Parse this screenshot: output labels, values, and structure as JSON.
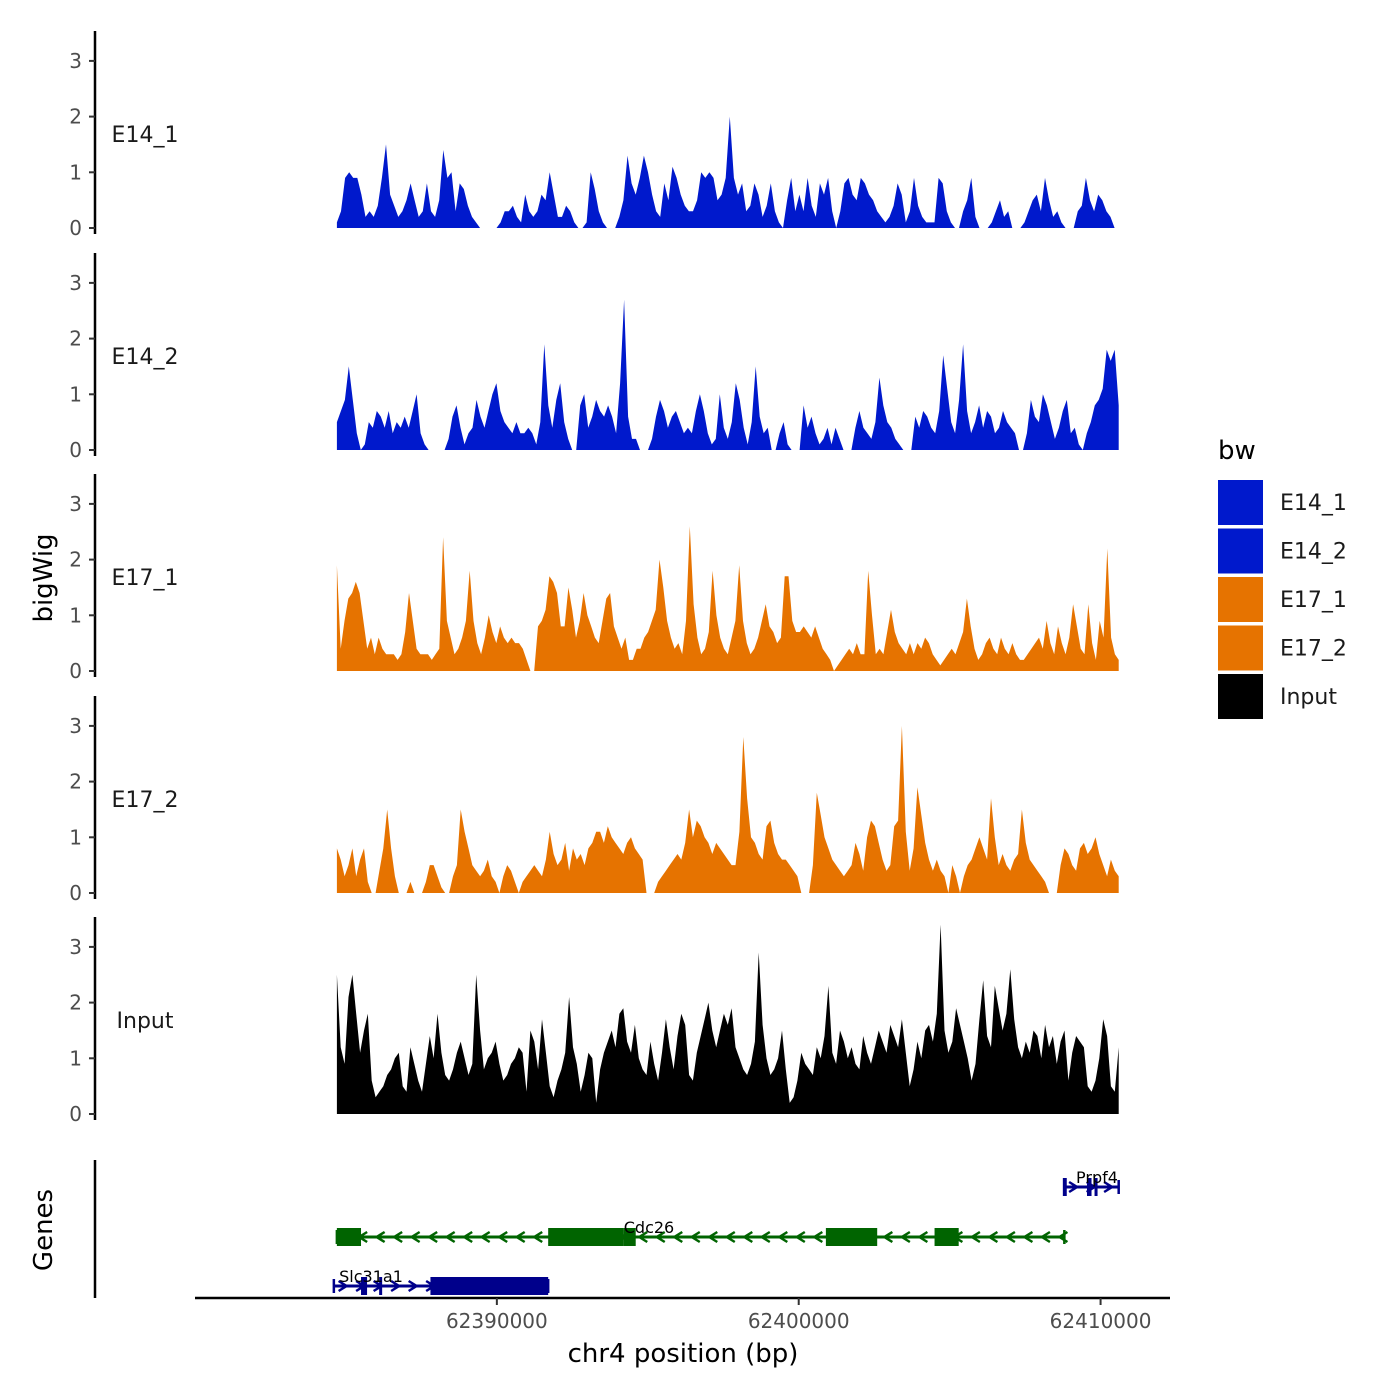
{
  "chart_data": {
    "type": "area",
    "title": "",
    "xlabel": "chr4 position (bp)",
    "ylabel": "bigWig",
    "genes_label": "Genes",
    "chromosome": "chr4",
    "xlim": [
      62380000,
      62412300
    ],
    "ylim": [
      0,
      3.5
    ],
    "x_start": 62384700,
    "x_end": 62410600,
    "x_ticks": [
      62390000,
      62400000,
      62410000
    ],
    "x_tick_labels": [
      "62390000",
      "62400000",
      "62410000"
    ],
    "y_ticks": [
      0,
      1,
      2,
      3
    ],
    "y_tick_labels": [
      "0",
      "1",
      "2",
      "3"
    ],
    "legend_title": "bw",
    "legend": [
      {
        "name": "E14_1",
        "color": "#0019CC"
      },
      {
        "name": "E14_2",
        "color": "#0019CC"
      },
      {
        "name": "E17_1",
        "color": "#E67300"
      },
      {
        "name": "E17_2",
        "color": "#E67300"
      },
      {
        "name": "Input",
        "color": "#000000"
      }
    ],
    "series": [
      {
        "name": "E14_1",
        "color": "#0019CC",
        "bin_bp": 100,
        "values": [
          0.1,
          0.3,
          0.9,
          1.0,
          0.9,
          0.9,
          0.6,
          0.2,
          0.3,
          0.2,
          0.4,
          0.9,
          1.5,
          0.6,
          0.4,
          0.2,
          0.3,
          0.5,
          0.8,
          0.5,
          0.2,
          0.3,
          0.8,
          0.3,
          0.2,
          0.5,
          1.4,
          0.9,
          1.0,
          0.3,
          0.8,
          0.7,
          0.4,
          0.2,
          0.1,
          0.0,
          0.0,
          0.0,
          0.0,
          0.0,
          0.1,
          0.3,
          0.3,
          0.4,
          0.2,
          0.1,
          0.6,
          0.3,
          0.2,
          0.3,
          0.6,
          0.5,
          1.0,
          0.6,
          0.2,
          0.2,
          0.4,
          0.3,
          0.1,
          0.0,
          0.0,
          0.1,
          1.0,
          0.7,
          0.3,
          0.1,
          0.0,
          0.0,
          0.0,
          0.2,
          0.5,
          1.3,
          0.8,
          0.6,
          0.9,
          1.3,
          1.0,
          0.6,
          0.3,
          0.2,
          0.8,
          0.5,
          1.1,
          0.9,
          0.6,
          0.4,
          0.3,
          0.3,
          0.5,
          1.0,
          0.9,
          1.0,
          0.9,
          0.5,
          0.6,
          0.9,
          2.0,
          0.9,
          0.6,
          0.8,
          0.3,
          0.4,
          0.8,
          0.6,
          0.2,
          0.4,
          0.8,
          0.3,
          0.1,
          0.0,
          0.5,
          0.9,
          0.3,
          0.6,
          0.3,
          0.9,
          0.4,
          0.2,
          0.8,
          0.6,
          0.9,
          0.3,
          0.0,
          0.3,
          0.8,
          0.9,
          0.6,
          0.5,
          0.9,
          0.8,
          0.6,
          0.5,
          0.3,
          0.2,
          0.1,
          0.2,
          0.4,
          0.8,
          0.6,
          0.1,
          0.3,
          0.9,
          0.4,
          0.2,
          0.1,
          0.1,
          0.1,
          0.9,
          0.8,
          0.3,
          0.1,
          0.0,
          0.0,
          0.3,
          0.5,
          0.9,
          0.2,
          0.0,
          0.0,
          0.0,
          0.1,
          0.3,
          0.5,
          0.2,
          0.3,
          0.0,
          0.0,
          0.0,
          0.1,
          0.3,
          0.5,
          0.6,
          0.3,
          0.9,
          0.5,
          0.2,
          0.3,
          0.1,
          0.0,
          0.0,
          0.0,
          0.3,
          0.4,
          0.9,
          0.5,
          0.3,
          0.6,
          0.5,
          0.3,
          0.2,
          0.0,
          0.0
        ],
        "note": "y values per bin, estimated from the plotted track"
      },
      {
        "name": "E14_2",
        "color": "#0019CC",
        "bin_bp": 100,
        "values": [
          0.5,
          0.7,
          0.9,
          1.5,
          0.9,
          0.3,
          0.0,
          0.1,
          0.5,
          0.4,
          0.7,
          0.6,
          0.4,
          0.7,
          0.3,
          0.5,
          0.4,
          0.6,
          0.4,
          0.7,
          1.0,
          0.3,
          0.1,
          0.0,
          0.0,
          0.0,
          0.0,
          0.0,
          0.2,
          0.6,
          0.8,
          0.4,
          0.1,
          0.3,
          0.4,
          0.9,
          0.6,
          0.4,
          0.7,
          1.0,
          1.2,
          0.7,
          0.5,
          0.4,
          0.3,
          0.5,
          0.3,
          0.3,
          0.4,
          0.3,
          0.1,
          0.5,
          1.9,
          0.8,
          0.4,
          0.9,
          1.2,
          0.5,
          0.2,
          0.0,
          0.0,
          0.8,
          1.0,
          0.4,
          0.6,
          0.9,
          0.7,
          0.6,
          0.8,
          0.6,
          0.3,
          1.2,
          2.7,
          0.6,
          0.2,
          0.2,
          0.0,
          0.0,
          0.0,
          0.2,
          0.6,
          0.9,
          0.7,
          0.4,
          0.6,
          0.7,
          0.5,
          0.3,
          0.4,
          0.3,
          0.7,
          1.0,
          0.7,
          0.3,
          0.1,
          0.2,
          1.0,
          0.4,
          0.2,
          0.5,
          1.2,
          0.9,
          0.4,
          0.1,
          0.5,
          1.5,
          0.6,
          0.3,
          0.4,
          0.0,
          0.0,
          0.3,
          0.5,
          0.1,
          0.0,
          0.0,
          0.0,
          0.8,
          0.4,
          0.6,
          0.3,
          0.1,
          0.2,
          0.4,
          0.1,
          0.4,
          0.2,
          0.0,
          0.0,
          0.0,
          0.4,
          0.7,
          0.4,
          0.3,
          0.2,
          0.5,
          1.3,
          0.8,
          0.5,
          0.4,
          0.2,
          0.1,
          0.0,
          0.0,
          0.0,
          0.6,
          0.4,
          0.7,
          0.6,
          0.4,
          0.3,
          0.7,
          1.7,
          1.1,
          0.5,
          0.3,
          0.9,
          1.9,
          0.7,
          0.3,
          0.5,
          0.8,
          0.4,
          0.7,
          0.6,
          0.3,
          0.4,
          0.7,
          0.5,
          0.4,
          0.3,
          0.0,
          0.0,
          0.3,
          0.9,
          0.6,
          0.5,
          1.0,
          0.8,
          0.5,
          0.2,
          0.4,
          0.7,
          0.9,
          0.3,
          0.4,
          0.1,
          0.0,
          0.3,
          0.5,
          0.8,
          0.9,
          1.1,
          1.8,
          1.6,
          1.8,
          0.8
        ],
        "note": "y values per bin, estimated from the plotted track"
      },
      {
        "name": "E17_1",
        "color": "#E67300",
        "bin_bp": 100,
        "values": [
          1.9,
          0.4,
          0.9,
          1.3,
          1.4,
          1.6,
          1.4,
          0.9,
          0.4,
          0.6,
          0.3,
          0.6,
          0.4,
          0.3,
          0.3,
          0.3,
          0.2,
          0.3,
          0.7,
          1.4,
          0.9,
          0.4,
          0.3,
          0.3,
          0.3,
          0.2,
          0.3,
          0.4,
          2.4,
          0.9,
          0.6,
          0.3,
          0.4,
          0.6,
          0.9,
          1.8,
          0.9,
          0.5,
          0.3,
          0.6,
          1.0,
          0.7,
          0.5,
          0.8,
          0.6,
          0.5,
          0.6,
          0.5,
          0.5,
          0.4,
          0.2,
          0.0,
          0.0,
          0.8,
          0.9,
          1.1,
          1.7,
          1.6,
          1.4,
          0.8,
          0.8,
          1.5,
          1.1,
          0.6,
          0.9,
          1.4,
          1.0,
          0.8,
          0.6,
          0.5,
          0.9,
          1.3,
          1.4,
          0.8,
          0.6,
          0.4,
          0.6,
          0.2,
          0.2,
          0.4,
          0.4,
          0.6,
          0.7,
          0.9,
          1.1,
          2.0,
          1.5,
          0.9,
          0.6,
          0.4,
          0.5,
          0.3,
          0.9,
          2.6,
          1.2,
          0.6,
          0.3,
          0.4,
          0.7,
          1.8,
          1.0,
          0.6,
          0.4,
          0.3,
          0.6,
          0.9,
          1.9,
          0.9,
          0.5,
          0.3,
          0.4,
          0.6,
          0.9,
          1.2,
          0.8,
          0.7,
          0.5,
          0.6,
          1.7,
          1.7,
          0.9,
          0.7,
          0.7,
          0.8,
          0.7,
          0.6,
          0.8,
          0.6,
          0.4,
          0.3,
          0.2,
          0.0,
          0.1,
          0.2,
          0.3,
          0.4,
          0.3,
          0.5,
          0.3,
          0.3,
          1.8,
          1.0,
          0.3,
          0.4,
          0.3,
          0.7,
          1.1,
          0.7,
          0.5,
          0.4,
          0.3,
          0.5,
          0.3,
          0.5,
          0.4,
          0.6,
          0.5,
          0.3,
          0.2,
          0.1,
          0.2,
          0.3,
          0.4,
          0.3,
          0.5,
          0.7,
          1.3,
          0.8,
          0.4,
          0.2,
          0.3,
          0.5,
          0.6,
          0.4,
          0.3,
          0.6,
          0.4,
          0.3,
          0.5,
          0.3,
          0.2,
          0.2,
          0.3,
          0.4,
          0.5,
          0.6,
          0.4,
          0.9,
          0.5,
          0.3,
          0.8,
          0.5,
          0.3,
          0.6,
          1.2,
          0.8,
          0.4,
          0.3,
          1.2,
          0.5,
          0.2,
          0.9,
          0.6,
          2.2,
          0.6,
          0.3,
          0.2
        ],
        "note": "y values per bin, estimated from the plotted track"
      },
      {
        "name": "E17_2",
        "color": "#E67300",
        "bin_bp": 100,
        "values": [
          0.8,
          0.6,
          0.3,
          0.5,
          0.8,
          0.3,
          0.6,
          0.8,
          0.2,
          0.0,
          0.0,
          0.4,
          0.8,
          1.5,
          0.8,
          0.3,
          0.0,
          0.0,
          0.0,
          0.2,
          0.0,
          0.0,
          0.0,
          0.2,
          0.5,
          0.5,
          0.3,
          0.1,
          0.0,
          0.0,
          0.3,
          0.5,
          1.5,
          1.1,
          0.8,
          0.5,
          0.4,
          0.3,
          0.4,
          0.6,
          0.3,
          0.2,
          0.0,
          0.3,
          0.5,
          0.4,
          0.2,
          0.0,
          0.2,
          0.3,
          0.4,
          0.5,
          0.4,
          0.3,
          0.6,
          1.1,
          0.7,
          0.5,
          0.6,
          0.9,
          0.4,
          0.8,
          0.6,
          0.7,
          0.5,
          0.8,
          0.9,
          1.1,
          1.1,
          0.9,
          1.2,
          1.0,
          0.9,
          0.8,
          0.7,
          0.9,
          1.0,
          0.8,
          0.7,
          0.6,
          0.0,
          0.0,
          0.0,
          0.2,
          0.3,
          0.4,
          0.5,
          0.6,
          0.7,
          0.6,
          0.9,
          1.5,
          1.0,
          1.3,
          1.2,
          1.0,
          0.9,
          0.7,
          0.9,
          0.8,
          0.7,
          0.6,
          0.5,
          0.5,
          1.1,
          2.8,
          1.7,
          1.0,
          0.9,
          0.7,
          0.6,
          1.2,
          1.3,
          0.9,
          0.7,
          0.6,
          0.6,
          0.5,
          0.4,
          0.3,
          0.0,
          0.0,
          0.0,
          0.5,
          1.8,
          1.4,
          1.0,
          0.8,
          0.6,
          0.5,
          0.4,
          0.3,
          0.4,
          0.5,
          0.9,
          0.7,
          0.4,
          1.0,
          1.3,
          1.2,
          0.9,
          0.6,
          0.4,
          0.5,
          1.2,
          1.3,
          3.0,
          1.1,
          0.4,
          0.8,
          1.9,
          1.4,
          0.9,
          0.6,
          0.4,
          0.6,
          0.4,
          0.3,
          0.0,
          0.5,
          0.3,
          0.0,
          0.3,
          0.5,
          0.6,
          0.8,
          1.0,
          0.8,
          0.6,
          1.7,
          1.0,
          0.5,
          0.7,
          0.5,
          0.4,
          0.6,
          0.7,
          1.5,
          0.9,
          0.6,
          0.5,
          0.4,
          0.3,
          0.2,
          0.0,
          0.0,
          0.0,
          0.5,
          0.8,
          0.7,
          0.5,
          0.4,
          0.8,
          0.9,
          0.7,
          0.8,
          1.0,
          0.7,
          0.5,
          0.3,
          0.6,
          0.4,
          0.3
        ]
      },
      {
        "name": "Input",
        "color": "#000000",
        "bin_bp": 100,
        "values": [
          2.5,
          1.2,
          0.9,
          2.1,
          2.5,
          1.8,
          1.1,
          1.5,
          1.8,
          0.6,
          0.3,
          0.4,
          0.5,
          0.7,
          0.8,
          1.0,
          1.1,
          0.5,
          0.4,
          1.2,
          0.9,
          0.6,
          0.4,
          0.9,
          1.4,
          1.0,
          1.8,
          1.1,
          0.7,
          0.6,
          0.8,
          1.1,
          1.3,
          1.0,
          0.7,
          0.9,
          2.5,
          1.5,
          0.8,
          1.0,
          1.1,
          1.3,
          0.9,
          0.6,
          0.7,
          0.9,
          1.0,
          1.2,
          1.1,
          0.4,
          1.5,
          1.3,
          0.8,
          1.7,
          1.1,
          0.5,
          0.3,
          0.6,
          0.8,
          1.1,
          2.1,
          1.2,
          0.9,
          0.4,
          0.7,
          1.1,
          1.0,
          0.2,
          0.8,
          1.1,
          1.3,
          1.5,
          1.2,
          1.8,
          1.9,
          1.3,
          1.1,
          1.6,
          1.0,
          0.8,
          0.7,
          1.3,
          0.9,
          0.6,
          1.1,
          1.7,
          1.2,
          0.8,
          1.4,
          1.8,
          1.6,
          0.7,
          0.6,
          1.1,
          1.4,
          1.7,
          2.0,
          1.5,
          1.2,
          1.5,
          1.8,
          1.6,
          1.9,
          1.2,
          1.0,
          0.8,
          0.7,
          0.9,
          1.3,
          2.9,
          1.6,
          1.0,
          0.7,
          0.8,
          1.0,
          1.5,
          0.8,
          0.2,
          0.3,
          0.6,
          1.1,
          0.9,
          0.8,
          0.7,
          1.2,
          1.0,
          1.4,
          2.3,
          1.1,
          0.9,
          1.5,
          1.3,
          1.0,
          1.2,
          0.9,
          0.8,
          1.4,
          1.1,
          0.9,
          1.2,
          1.5,
          1.3,
          1.1,
          1.6,
          1.4,
          1.2,
          1.7,
          1.1,
          0.5,
          0.8,
          1.3,
          1.0,
          1.5,
          1.6,
          1.3,
          1.8,
          3.4,
          1.5,
          1.1,
          1.3,
          1.9,
          1.6,
          1.3,
          1.0,
          0.6,
          0.9,
          1.7,
          2.4,
          1.4,
          1.2,
          2.3,
          1.9,
          1.5,
          1.8,
          2.6,
          1.7,
          1.2,
          1.0,
          1.3,
          1.1,
          1.5,
          1.4,
          1.0,
          1.6,
          1.2,
          1.4,
          0.9,
          1.3,
          1.5,
          0.6,
          1.1,
          1.4,
          1.3,
          1.2,
          0.5,
          0.4,
          0.6,
          1.0,
          1.7,
          1.4,
          0.5,
          0.4,
          1.2
        ]
      }
    ],
    "genes": [
      {
        "name": "Prpf4",
        "strand": "+",
        "color": "#00008B",
        "start": 62408800,
        "end": 62410600,
        "exons": [
          [
            62408750,
            62408880
          ],
          [
            62409550,
            62409700
          ],
          [
            62409800,
            62409900
          ]
        ]
      },
      {
        "name": "Cdc26",
        "strand": "-",
        "color": "#006400",
        "start": 62384700,
        "end": 62408800,
        "exons": [
          [
            62384700,
            62385500
          ],
          [
            62391700,
            62394200
          ],
          [
            62394200,
            62394600
          ],
          [
            62400900,
            62402600
          ],
          [
            62404500,
            62405300
          ]
        ]
      },
      {
        "name": "Slc31a1",
        "strand": "+",
        "color": "#00008B",
        "start": 62384600,
        "end": 62391700,
        "exons": [
          [
            62385500,
            62385700
          ],
          [
            62386100,
            62386200
          ],
          [
            62387800,
            62391700
          ]
        ]
      }
    ]
  }
}
